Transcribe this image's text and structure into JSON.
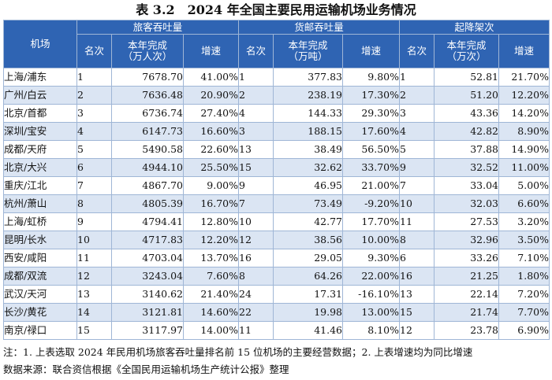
{
  "title": "表 3.2　2024 年全国主要民用运输机场业务情况",
  "headers": {
    "airport": "机场",
    "groups": [
      "旅客吞吐量",
      "货邮吞吐量",
      "起降架次"
    ],
    "rank": "名次",
    "passenger_value": "本年完成\n（万人次）",
    "cargo_value": "本年完成\n（万吨）",
    "flight_value": "本年完成\n（万次）",
    "growth": "增速"
  },
  "rows": [
    {
      "airport": "上海/浦东",
      "p_rank": "1",
      "p_value": "7678.70",
      "p_growth": "41.00%",
      "c_rank": "1",
      "c_value": "377.83",
      "c_growth": "9.80%",
      "f_rank": "1",
      "f_value": "52.81",
      "f_growth": "21.70%"
    },
    {
      "airport": "广州/白云",
      "p_rank": "2",
      "p_value": "7636.48",
      "p_growth": "20.90%",
      "c_rank": "2",
      "c_value": "238.19",
      "c_growth": "17.30%",
      "f_rank": "2",
      "f_value": "51.20",
      "f_growth": "12.20%"
    },
    {
      "airport": "北京/首都",
      "p_rank": "3",
      "p_value": "6736.74",
      "p_growth": "27.40%",
      "c_rank": "4",
      "c_value": "144.33",
      "c_growth": "29.30%",
      "f_rank": "3",
      "f_value": "43.36",
      "f_growth": "14.20%"
    },
    {
      "airport": "深圳/宝安",
      "p_rank": "4",
      "p_value": "6147.73",
      "p_growth": "16.60%",
      "c_rank": "3",
      "c_value": "188.15",
      "c_growth": "17.60%",
      "f_rank": "4",
      "f_value": "42.82",
      "f_growth": "8.90%"
    },
    {
      "airport": "成都/天府",
      "p_rank": "5",
      "p_value": "5490.58",
      "p_growth": "22.60%",
      "c_rank": "13",
      "c_value": "38.49",
      "c_growth": "56.50%",
      "f_rank": "5",
      "f_value": "37.88",
      "f_growth": "14.90%"
    },
    {
      "airport": "北京/大兴",
      "p_rank": "6",
      "p_value": "4944.10",
      "p_growth": "25.50%",
      "c_rank": "15",
      "c_value": "32.62",
      "c_growth": "33.70%",
      "f_rank": "9",
      "f_value": "32.52",
      "f_growth": "11.00%"
    },
    {
      "airport": "重庆/江北",
      "p_rank": "7",
      "p_value": "4867.70",
      "p_growth": "9.00%",
      "c_rank": "9",
      "c_value": "46.95",
      "c_growth": "21.00%",
      "f_rank": "7",
      "f_value": "33.04",
      "f_growth": "5.00%"
    },
    {
      "airport": "杭州/萧山",
      "p_rank": "8",
      "p_value": "4805.39",
      "p_growth": "16.70%",
      "c_rank": "7",
      "c_value": "73.49",
      "c_growth": "-9.20%",
      "f_rank": "10",
      "f_value": "32.03",
      "f_growth": "6.60%"
    },
    {
      "airport": "上海/虹桥",
      "p_rank": "9",
      "p_value": "4794.41",
      "p_growth": "12.80%",
      "c_rank": "10",
      "c_value": "42.77",
      "c_growth": "17.70%",
      "f_rank": "11",
      "f_value": "27.53",
      "f_growth": "3.20%"
    },
    {
      "airport": "昆明/长水",
      "p_rank": "10",
      "p_value": "4717.83",
      "p_growth": "12.20%",
      "c_rank": "12",
      "c_value": "38.56",
      "c_growth": "10.00%",
      "f_rank": "8",
      "f_value": "32.96",
      "f_growth": "3.50%"
    },
    {
      "airport": "西安/咸阳",
      "p_rank": "11",
      "p_value": "4703.04",
      "p_growth": "13.70%",
      "c_rank": "16",
      "c_value": "29.05",
      "c_growth": "9.30%",
      "f_rank": "6",
      "f_value": "33.26",
      "f_growth": "7.10%"
    },
    {
      "airport": "成都/双流",
      "p_rank": "12",
      "p_value": "3243.04",
      "p_growth": "7.60%",
      "c_rank": "8",
      "c_value": "64.26",
      "c_growth": "22.00%",
      "f_rank": "16",
      "f_value": "21.25",
      "f_growth": "1.80%"
    },
    {
      "airport": "武汉/天河",
      "p_rank": "13",
      "p_value": "3140.62",
      "p_growth": "21.40%",
      "c_rank": "24",
      "c_value": "17.31",
      "c_growth": "-16.10%",
      "f_rank": "13",
      "f_value": "22.14",
      "f_growth": "7.20%"
    },
    {
      "airport": "长沙/黄花",
      "p_rank": "14",
      "p_value": "3121.81",
      "p_growth": "14.60%",
      "c_rank": "22",
      "c_value": "19.98",
      "c_growth": "13.00%",
      "f_rank": "15",
      "f_value": "21.74",
      "f_growth": "7.70%"
    },
    {
      "airport": "南京/禄口",
      "p_rank": "15",
      "p_value": "3117.97",
      "p_growth": "14.00%",
      "c_rank": "11",
      "c_value": "41.46",
      "c_growth": "8.10%",
      "f_rank": "12",
      "f_value": "23.78",
      "f_growth": "6.90%"
    }
  ],
  "notes": {
    "note1": "注：1. 上表选取 2024 年民用机场旅客吞吐量排名前 15 位机场的主要经营数据；2. 上表增速均为同比增速",
    "source": "数据来源：联合资信根据《全国民用运输机场生产统计公报》整理"
  },
  "colors": {
    "header_bg": "#2f64b3",
    "stripe_bg": "#dbe5f3",
    "border": "#9fb6d6"
  }
}
